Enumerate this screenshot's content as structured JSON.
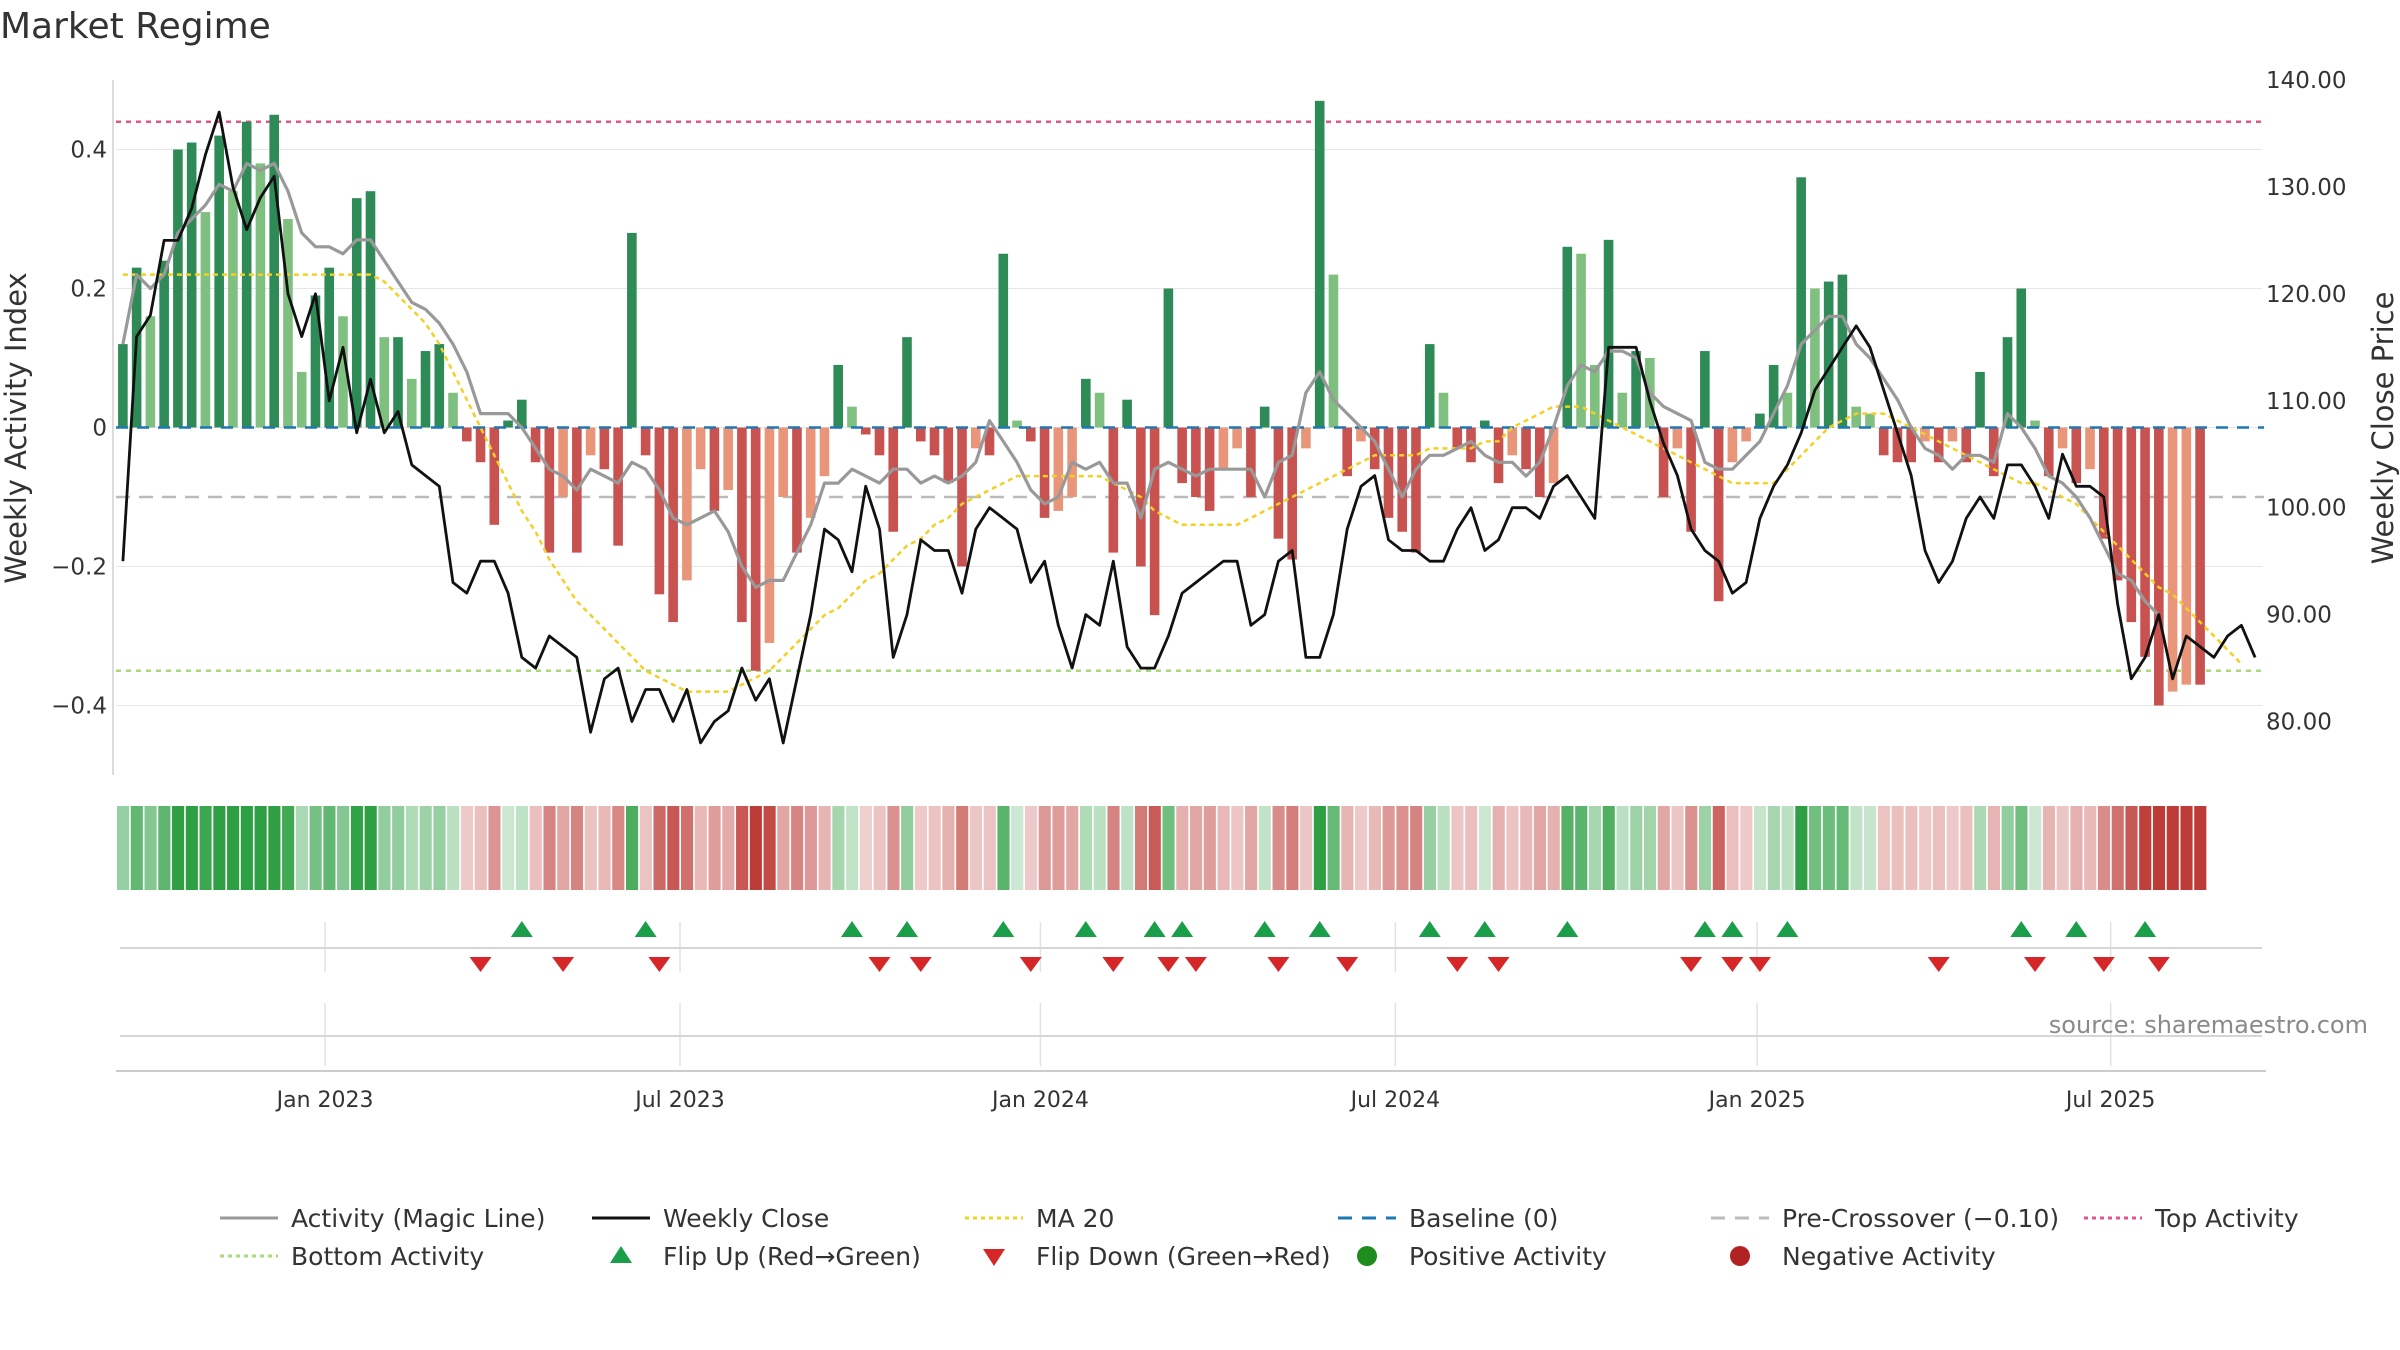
{
  "chart_data": {
    "type": "bar+line",
    "title": "Market Regime",
    "ylabel_left": "Weekly Activity Index",
    "ylabel_right": "Weekly Close Price",
    "ylim_left": [
      -0.5,
      0.5
    ],
    "ylim_right": [
      75,
      140
    ],
    "yticks_left": [
      0.4,
      0.2,
      0,
      -0.2,
      -0.4
    ],
    "yticks_left_labels": [
      "0.4",
      "0.2",
      "0",
      "−0.2",
      "−0.4"
    ],
    "yticks_right": [
      140,
      130,
      120,
      110,
      100,
      90,
      80
    ],
    "yticks_right_labels": [
      "140.00",
      "130.00",
      "120.00",
      "110.00",
      "100.00",
      "90.00",
      "80.00"
    ],
    "x_range": [
      0,
      156
    ],
    "x_ticks": [
      {
        "label": "Jan 2023",
        "pos": 15.2
      },
      {
        "label": "Jul 2023",
        "pos": 41.0
      },
      {
        "label": "Jan 2024",
        "pos": 67.2
      },
      {
        "label": "Jul 2024",
        "pos": 93.0
      },
      {
        "label": "Jan 2025",
        "pos": 119.3
      },
      {
        "label": "Jul 2025",
        "pos": 145.0
      }
    ],
    "reference_lines": {
      "top_activity": 0.44,
      "pre_crossover": -0.1,
      "bottom_activity": -0.35,
      "baseline": 0
    },
    "series": {
      "activity": [
        0.12,
        0.23,
        0.16,
        0.24,
        0.4,
        0.41,
        0.31,
        0.42,
        0.34,
        0.44,
        0.38,
        0.45,
        0.3,
        0.08,
        0.19,
        0.23,
        0.16,
        0.33,
        0.34,
        0.13,
        0.13,
        0.07,
        0.11,
        0.12,
        0.05,
        -0.02,
        -0.05,
        -0.14,
        0.01,
        0.04,
        -0.05,
        -0.18,
        -0.1,
        -0.18,
        -0.04,
        -0.06,
        -0.17,
        0.28,
        -0.04,
        -0.24,
        -0.28,
        -0.22,
        -0.06,
        -0.12,
        -0.09,
        -0.28,
        -0.35,
        -0.31,
        -0.1,
        -0.18,
        -0.13,
        -0.07,
        0.09,
        0.03,
        -0.01,
        -0.04,
        -0.15,
        0.13,
        -0.02,
        -0.04,
        -0.08,
        -0.2,
        -0.03,
        -0.04,
        0.25,
        0.01,
        -0.02,
        -0.13,
        -0.12,
        -0.1,
        0.07,
        0.05,
        -0.18,
        0.04,
        -0.2,
        -0.27,
        0.2,
        -0.08,
        -0.1,
        -0.12,
        -0.06,
        -0.03,
        -0.1,
        0.03,
        -0.16,
        -0.19,
        -0.03,
        0.47,
        0.22,
        -0.07,
        -0.02,
        -0.06,
        -0.13,
        -0.15,
        -0.18,
        0.12,
        0.05,
        -0.03,
        -0.05,
        0.01,
        -0.08,
        -0.04,
        -0.06,
        -0.1,
        -0.08,
        0.26,
        0.25,
        0.09,
        0.27,
        0.05,
        0.11,
        0.1,
        -0.1,
        -0.03,
        -0.15,
        0.11,
        -0.25,
        -0.05,
        -0.02,
        0.02,
        0.09,
        0.05,
        0.36,
        0.2,
        0.21,
        0.22,
        0.03,
        0.02,
        -0.04,
        -0.05,
        -0.05,
        -0.02,
        -0.05,
        -0.02,
        -0.05,
        0.08,
        -0.07,
        0.13,
        0.2,
        0.01,
        -0.07,
        -0.03,
        -0.08,
        -0.06,
        -0.16,
        -0.22,
        -0.28,
        -0.33,
        -0.4,
        -0.38,
        -0.37,
        -0.37
      ],
      "close": [
        95,
        116,
        118,
        125,
        125,
        128,
        133,
        137,
        130,
        126,
        129,
        131,
        120,
        116,
        120,
        110,
        115,
        107,
        112,
        107,
        109,
        104,
        103,
        102,
        93,
        92,
        95,
        95,
        92,
        86,
        85,
        88,
        87,
        86,
        79,
        84,
        85,
        80,
        83,
        83,
        80,
        83,
        78,
        80,
        81,
        85,
        82,
        84,
        78,
        84,
        90,
        98,
        97,
        94,
        102,
        98,
        86,
        90,
        97,
        96,
        96,
        92,
        98,
        100,
        99,
        98,
        93,
        95,
        89,
        85,
        90,
        89,
        95,
        87,
        85,
        85,
        88,
        92,
        93,
        94,
        95,
        95,
        89,
        90,
        95,
        96,
        86,
        86,
        90,
        98,
        102,
        103,
        97,
        96,
        96,
        95,
        95,
        98,
        100,
        96,
        97,
        100,
        100,
        99,
        102,
        103,
        101,
        99,
        115,
        115,
        115,
        110,
        106,
        103,
        98,
        96,
        95,
        92,
        93,
        99,
        102,
        104,
        107,
        111,
        113,
        115,
        117,
        115,
        111,
        107,
        103,
        96,
        93,
        95,
        99,
        101,
        99,
        104,
        104,
        102,
        99,
        105,
        102,
        102,
        101,
        91,
        84,
        86,
        90,
        84,
        88,
        87,
        86,
        88,
        89,
        86
      ],
      "magic_line": [
        0.12,
        0.22,
        0.2,
        0.22,
        0.28,
        0.3,
        0.32,
        0.35,
        0.34,
        0.38,
        0.37,
        0.38,
        0.34,
        0.28,
        0.26,
        0.26,
        0.25,
        0.27,
        0.27,
        0.24,
        0.21,
        0.18,
        0.17,
        0.15,
        0.12,
        0.08,
        0.02,
        0.02,
        0.02,
        0.0,
        -0.03,
        -0.06,
        -0.07,
        -0.09,
        -0.06,
        -0.07,
        -0.08,
        -0.05,
        -0.06,
        -0.09,
        -0.13,
        -0.14,
        -0.13,
        -0.12,
        -0.15,
        -0.2,
        -0.23,
        -0.22,
        -0.22,
        -0.18,
        -0.14,
        -0.08,
        -0.08,
        -0.06,
        -0.07,
        -0.08,
        -0.06,
        -0.06,
        -0.08,
        -0.07,
        -0.08,
        -0.07,
        -0.05,
        0.01,
        -0.02,
        -0.05,
        -0.09,
        -0.11,
        -0.1,
        -0.05,
        -0.06,
        -0.05,
        -0.08,
        -0.08,
        -0.13,
        -0.06,
        -0.05,
        -0.06,
        -0.07,
        -0.06,
        -0.06,
        -0.06,
        -0.06,
        -0.1,
        -0.05,
        -0.04,
        0.05,
        0.08,
        0.04,
        0.02,
        0.0,
        -0.02,
        -0.06,
        -0.1,
        -0.06,
        -0.04,
        -0.04,
        -0.03,
        -0.02,
        -0.04,
        -0.05,
        -0.05,
        -0.07,
        -0.05,
        0.0,
        0.06,
        0.09,
        0.08,
        0.11,
        0.11,
        0.1,
        0.05,
        0.03,
        0.02,
        0.01,
        -0.05,
        -0.06,
        -0.06,
        -0.04,
        -0.02,
        0.02,
        0.06,
        0.12,
        0.14,
        0.16,
        0.16,
        0.12,
        0.1,
        0.07,
        0.04,
        0.0,
        -0.03,
        -0.04,
        -0.06,
        -0.04,
        -0.04,
        -0.05,
        0.02,
        0.0,
        -0.03,
        -0.07,
        -0.08,
        -0.1,
        -0.13,
        -0.17,
        -0.21,
        -0.22,
        -0.25,
        -0.27
      ],
      "ma20": [
        0.22,
        0.22,
        0.22,
        0.22,
        0.22,
        0.22,
        0.22,
        0.22,
        0.22,
        0.22,
        0.22,
        0.22,
        0.22,
        0.22,
        0.22,
        0.22,
        0.22,
        0.22,
        0.22,
        0.21,
        0.19,
        0.17,
        0.15,
        0.12,
        0.08,
        0.04,
        0.0,
        -0.04,
        -0.08,
        -0.12,
        -0.15,
        -0.19,
        -0.22,
        -0.25,
        -0.27,
        -0.29,
        -0.31,
        -0.33,
        -0.35,
        -0.36,
        -0.37,
        -0.38,
        -0.38,
        -0.38,
        -0.38,
        -0.37,
        -0.36,
        -0.35,
        -0.33,
        -0.31,
        -0.29,
        -0.27,
        -0.26,
        -0.24,
        -0.22,
        -0.21,
        -0.19,
        -0.17,
        -0.16,
        -0.14,
        -0.13,
        -0.11,
        -0.1,
        -0.09,
        -0.08,
        -0.07,
        -0.07,
        -0.07,
        -0.07,
        -0.07,
        -0.07,
        -0.07,
        -0.08,
        -0.09,
        -0.1,
        -0.12,
        -0.13,
        -0.14,
        -0.14,
        -0.14,
        -0.14,
        -0.14,
        -0.13,
        -0.12,
        -0.11,
        -0.1,
        -0.09,
        -0.08,
        -0.07,
        -0.06,
        -0.05,
        -0.04,
        -0.04,
        -0.04,
        -0.04,
        -0.03,
        -0.03,
        -0.03,
        -0.03,
        -0.02,
        -0.02,
        0.0,
        0.01,
        0.02,
        0.03,
        0.03,
        0.03,
        0.02,
        0.01,
        0.0,
        -0.01,
        -0.02,
        -0.03,
        -0.04,
        -0.05,
        -0.06,
        -0.07,
        -0.08,
        -0.08,
        -0.08,
        -0.08,
        -0.06,
        -0.04,
        -0.02,
        0.0,
        0.01,
        0.02,
        0.02,
        0.02,
        0.01,
        0.0,
        -0.01,
        -0.02,
        -0.03,
        -0.04,
        -0.05,
        -0.06,
        -0.07,
        -0.08,
        -0.08,
        -0.09,
        -0.1,
        -0.11,
        -0.13,
        -0.15,
        -0.17,
        -0.19,
        -0.21,
        -0.23,
        -0.24,
        -0.26,
        -0.28,
        -0.3,
        -0.32,
        -0.34
      ]
    },
    "flip_up_weeks": [
      29,
      38,
      53,
      57,
      64,
      70,
      75,
      77,
      83,
      87,
      95,
      99,
      105,
      115,
      117,
      121,
      138,
      142,
      147
    ],
    "flip_down_weeks": [
      26,
      32,
      39,
      55,
      58,
      66,
      72,
      76,
      78,
      84,
      89,
      97,
      100,
      114,
      117,
      119,
      132,
      139,
      144,
      148
    ],
    "colors": {
      "positive_strong": "#2e8b57",
      "positive_weak": "#7fbf7f",
      "negative_strong": "#c85250",
      "negative_weak": "#e8957a",
      "magic_line": "#999999",
      "weekly_close": "#111111",
      "ma20": "#f2d024",
      "baseline": "#1f77b4",
      "pre_crossover": "#bbbbbb",
      "top_activity": "#e0568c",
      "bottom_activity": "#a8d878",
      "flip_up": "#1a9e4a",
      "flip_down": "#d62728",
      "positive_dot": "#1e8c1e",
      "negative_dot": "#b22222"
    },
    "legend": [
      {
        "label": "Activity (Magic Line)",
        "marker": "line",
        "color": "#999999"
      },
      {
        "label": "Weekly Close",
        "marker": "line",
        "color": "#111111"
      },
      {
        "label": "MA 20",
        "marker": "dotted",
        "color": "#f2d024"
      },
      {
        "label": "Baseline (0)",
        "marker": "dashed",
        "color": "#1f77b4"
      },
      {
        "label": "Pre-Crossover (−0.10)",
        "marker": "dashed",
        "color": "#bbbbbb"
      },
      {
        "label": "Top Activity",
        "marker": "dotted",
        "color": "#e0568c"
      },
      {
        "label": "Bottom Activity",
        "marker": "dotted",
        "color": "#a8d878"
      },
      {
        "label": "Flip Up (Red→Green)",
        "marker": "triangle-up",
        "color": "#1a9e4a"
      },
      {
        "label": "Flip Down (Green→Red)",
        "marker": "triangle-down",
        "color": "#d62728"
      },
      {
        "label": "Positive Activity",
        "marker": "dot",
        "color": "#1e8c1e"
      },
      {
        "label": "Negative Activity",
        "marker": "dot",
        "color": "#b22222"
      }
    ],
    "source": "source: sharemaestro.com"
  }
}
